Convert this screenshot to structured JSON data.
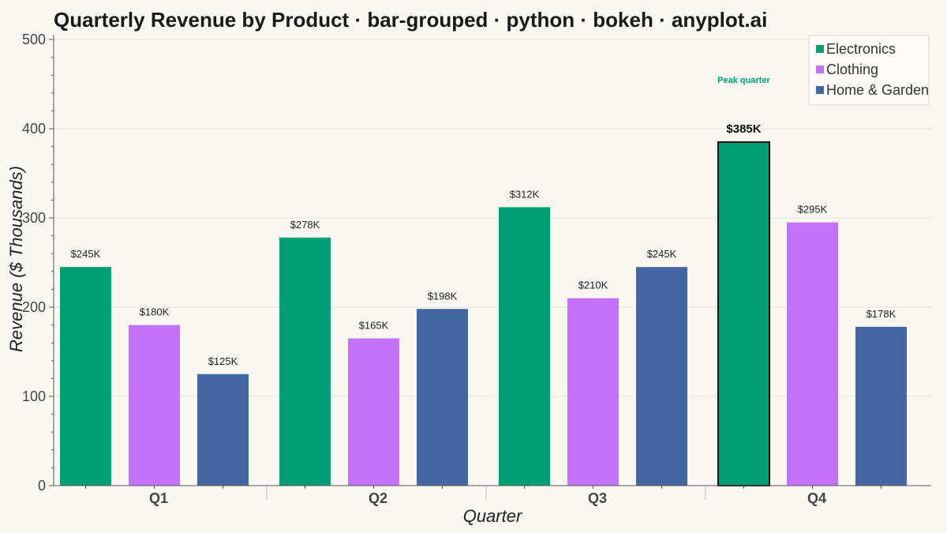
{
  "chart_data": {
    "type": "bar",
    "title": "Quarterly Revenue by Product · bar-grouped · python · bokeh · anyplot.ai",
    "xlabel": "Quarter",
    "ylabel": "Revenue ($ Thousands)",
    "categories": [
      "Q1",
      "Q2",
      "Q3",
      "Q4"
    ],
    "series": [
      {
        "name": "Electronics",
        "color": "#009E73",
        "values": [
          245,
          278,
          312,
          385
        ],
        "labels": [
          "$245K",
          "$278K",
          "$312K",
          "$385K"
        ]
      },
      {
        "name": "Clothing",
        "color": "#C472FB",
        "values": [
          180,
          165,
          210,
          295
        ],
        "labels": [
          "$180K",
          "$165K",
          "$210K",
          "$295K"
        ]
      },
      {
        "name": "Home & Garden",
        "color": "#4466A3",
        "values": [
          125,
          198,
          245,
          178
        ],
        "labels": [
          "$125K",
          "$198K",
          "$245K",
          "$178K"
        ]
      }
    ],
    "ylim": [
      0,
      500
    ],
    "yticks": [
      0,
      100,
      200,
      300,
      400,
      500
    ],
    "grid": true,
    "legend_position": "top-right",
    "highlight": {
      "series": "Electronics",
      "category": "Q4"
    },
    "annotation": {
      "text": "Peak quarter",
      "category": "Q4",
      "series": "Electronics",
      "y": 455,
      "color": "#009E73"
    },
    "background": "#F9F7F1"
  }
}
